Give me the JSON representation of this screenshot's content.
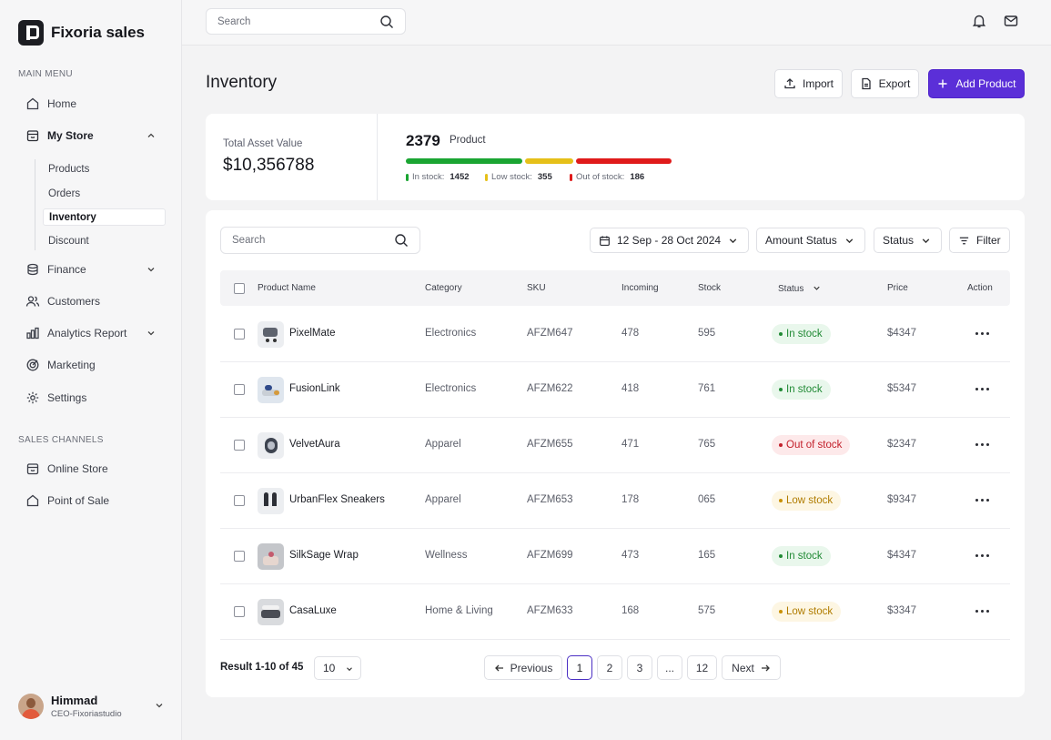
{
  "brand": {
    "name": "Fixoria sales"
  },
  "sidebar": {
    "main_menu_label": "MAIN MENU",
    "items": [
      {
        "label": "Home"
      },
      {
        "label": "My Store"
      },
      {
        "label": "Finance"
      },
      {
        "label": "Customers"
      },
      {
        "label": "Analytics Report"
      },
      {
        "label": "Marketing"
      },
      {
        "label": "Settings"
      }
    ],
    "store_subitems": [
      {
        "label": "Products"
      },
      {
        "label": "Orders"
      },
      {
        "label": "Inventory"
      },
      {
        "label": "Discount"
      }
    ],
    "sales_channels_label": "SALES CHANNELS",
    "channels": [
      {
        "label": "Online Store"
      },
      {
        "label": "Point of Sale"
      }
    ]
  },
  "user": {
    "name": "Himmad",
    "role": "CEO-Fixoriastudio"
  },
  "topbar": {
    "search_placeholder": "Search"
  },
  "header": {
    "title": "Inventory",
    "import_label": "Import",
    "export_label": "Export",
    "add_label": "Add Product"
  },
  "summary": {
    "asset_label": "Total Asset Value",
    "asset_value": "$10,356788",
    "product_count": "2379",
    "product_label": "Product",
    "in_stock_label": "In stock:",
    "in_stock_value": "1452",
    "low_stock_label": "Low stock:",
    "low_stock_value": "355",
    "out_stock_label": "Out of stock:",
    "out_stock_value": "186"
  },
  "colors": {
    "accent": "#5b2fd8",
    "in_stock": "#1aa532",
    "low_stock": "#e6c019",
    "out_stock": "#e01b1b"
  },
  "filters": {
    "search_placeholder": "Search",
    "date_range": "12 Sep - 28 Oct 2024",
    "amount_status": "Amount Status",
    "status": "Status",
    "filter": "Filter"
  },
  "table": {
    "columns": {
      "name": "Product Name",
      "category": "Category",
      "sku": "SKU",
      "incoming": "Incoming",
      "stock": "Stock",
      "status": "Status",
      "price": "Price",
      "action": "Action"
    },
    "rows": [
      {
        "name": "PixelMate",
        "category": "Electronics",
        "sku": "AFZM647",
        "incoming": "478",
        "stock": "595",
        "status": "In stock",
        "price": "$4347"
      },
      {
        "name": "FusionLink",
        "category": "Electronics",
        "sku": "AFZM622",
        "incoming": "418",
        "stock": "761",
        "status": "In stock",
        "price": "$5347"
      },
      {
        "name": "VelvetAura",
        "category": "Apparel",
        "sku": "AFZM655",
        "incoming": "471",
        "stock": "765",
        "status": "Out of stock",
        "price": "$2347"
      },
      {
        "name": "UrbanFlex Sneakers",
        "category": "Apparel",
        "sku": "AFZM653",
        "incoming": "178",
        "stock": "065",
        "status": "Low stock",
        "price": "$9347"
      },
      {
        "name": "SilkSage Wrap",
        "category": "Wellness",
        "sku": "AFZM699",
        "incoming": "473",
        "stock": "165",
        "status": "In stock",
        "price": "$4347"
      },
      {
        "name": "CasaLuxe",
        "category": "Home & Living",
        "sku": "AFZM633",
        "incoming": "168",
        "stock": "575",
        "status": "Low stock",
        "price": "$3347"
      }
    ]
  },
  "pagination": {
    "result_prefix": "Result",
    "result_range": "1-10 of 45",
    "per_page": "10",
    "previous": "Previous",
    "next": "Next",
    "pages": [
      "1",
      "2",
      "3",
      "...",
      "12"
    ]
  }
}
